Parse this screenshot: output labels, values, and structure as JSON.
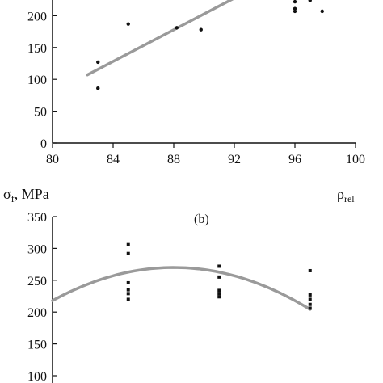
{
  "chart_data": [
    {
      "type": "scatter",
      "panel_label": "",
      "ylabel": "",
      "xlabel_main": "ρ",
      "xlabel_sub": "rel",
      "xlim": [
        80,
        100
      ],
      "ylim": [
        0,
        250
      ],
      "x_ticks": [
        80,
        84,
        88,
        92,
        96,
        100
      ],
      "y_ticks": [
        0,
        50,
        100,
        150,
        200
      ],
      "points": [
        {
          "x": 83.0,
          "y": 127
        },
        {
          "x": 83.0,
          "y": 86
        },
        {
          "x": 85.0,
          "y": 187
        },
        {
          "x": 88.2,
          "y": 181
        },
        {
          "x": 89.8,
          "y": 178
        },
        {
          "x": 96.0,
          "y": 222
        },
        {
          "x": 96.0,
          "y": 211
        },
        {
          "x": 96.0,
          "y": 207
        },
        {
          "x": 97.0,
          "y": 224
        },
        {
          "x": 97.8,
          "y": 207
        }
      ],
      "fit_line": [
        {
          "x": 82.3,
          "y": 107
        },
        {
          "x": 93.8,
          "y": 250
        }
      ],
      "line_color": "#9a9a9a",
      "marker_color": "#111111"
    },
    {
      "type": "scatter",
      "panel_label": "(b)",
      "ylabel_main": "σ",
      "ylabel_sub": "f",
      "ylabel_unit": ", MPa",
      "xlabel": "",
      "xlim": [
        80,
        100
      ],
      "ylim": [
        100,
        350
      ],
      "y_ticks": [
        100,
        150,
        200,
        250,
        300,
        350
      ],
      "points": [
        {
          "x": 85.0,
          "y": 306
        },
        {
          "x": 85.0,
          "y": 292
        },
        {
          "x": 85.0,
          "y": 246
        },
        {
          "x": 85.0,
          "y": 235
        },
        {
          "x": 85.0,
          "y": 229
        },
        {
          "x": 85.0,
          "y": 220
        },
        {
          "x": 91.0,
          "y": 272
        },
        {
          "x": 91.0,
          "y": 255
        },
        {
          "x": 91.0,
          "y": 234
        },
        {
          "x": 91.0,
          "y": 229
        },
        {
          "x": 91.0,
          "y": 224
        },
        {
          "x": 97.0,
          "y": 265
        },
        {
          "x": 97.0,
          "y": 227
        },
        {
          "x": 97.0,
          "y": 220
        },
        {
          "x": 97.0,
          "y": 212
        },
        {
          "x": 97.0,
          "y": 206
        }
      ],
      "fit_curve": {
        "x_vertex": 88.0,
        "y_vertex": 270,
        "x_start": 80.0,
        "y_start": 218,
        "x_end": 97.0
      },
      "line_color": "#9a9a9a",
      "marker_color": "#111111"
    }
  ]
}
